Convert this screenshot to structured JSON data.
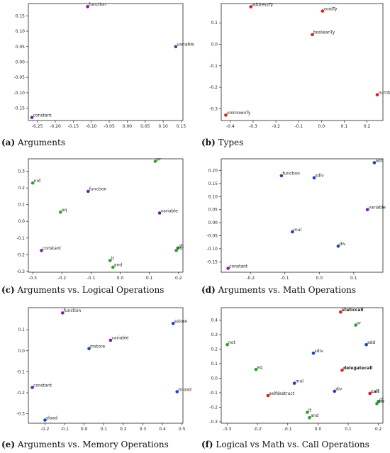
{
  "colors": {
    "purple": "#7a1fa2",
    "red": "#e41a1c",
    "green": "#2ca02c",
    "blue": "#1f3fbf"
  },
  "chart_data": [
    {
      "type": "scatter",
      "caption_letter": "(a)",
      "caption_text": "Arguments",
      "xlim": [
        -0.275,
        0.155
      ],
      "ylim": [
        -0.19,
        0.19
      ],
      "xticks": [
        -0.25,
        -0.2,
        -0.15,
        -0.1,
        -0.05,
        0.0,
        0.05,
        0.1,
        0.15
      ],
      "xtick_labels": [
        "-0.25",
        "-0.20",
        "-0.15",
        "-0.10",
        "-0.05",
        "0.00",
        "0.05",
        "0.10",
        "0.15"
      ],
      "yticks": [
        -0.15,
        -0.1,
        -0.05,
        0.0,
        0.05,
        0.1,
        0.15
      ],
      "ytick_labels": [
        "-0.15",
        "-0.10",
        "-0.05",
        "0.00",
        "0.05",
        "0.10",
        "0.15"
      ],
      "points": [
        {
          "label": "function",
          "x": -0.11,
          "y": 0.18,
          "color": "purple"
        },
        {
          "label": "variable",
          "x": 0.135,
          "y": 0.05,
          "color": "purple"
        },
        {
          "label": "constant",
          "x": -0.265,
          "y": -0.18,
          "color": "purple"
        }
      ]
    },
    {
      "type": "scatter",
      "caption_letter": "(b)",
      "caption_text": "Types",
      "xlim": [
        -0.44,
        0.27
      ],
      "ylim": [
        -0.355,
        0.19
      ],
      "xticks": [
        -0.4,
        -0.3,
        -0.2,
        -0.1,
        0.0,
        0.1,
        0.2
      ],
      "xtick_labels": [
        "-0.4",
        "-0.3",
        "-0.2",
        "-0.1",
        "0.0",
        "0.1",
        "0.2"
      ],
      "yticks": [
        -0.3,
        -0.2,
        -0.1,
        0.0,
        0.1
      ],
      "ytick_labels": [
        "-0.3",
        "-0.2",
        "-0.1",
        "0.0",
        "0.1"
      ],
      "points": [
        {
          "label": "addressTy",
          "x": -0.31,
          "y": 0.175,
          "color": "red"
        },
        {
          "label": "voidTy",
          "x": 0.005,
          "y": 0.155,
          "color": "red"
        },
        {
          "label": "booleanTy",
          "x": -0.04,
          "y": 0.045,
          "color": "red"
        },
        {
          "label": "numberTy",
          "x": 0.245,
          "y": -0.235,
          "color": "red"
        },
        {
          "label": "unknownTy",
          "x": -0.42,
          "y": -0.33,
          "color": "red"
        }
      ]
    },
    {
      "type": "scatter",
      "caption_letter": "(c)",
      "caption_text": "Arguments vs. Logical Operations",
      "xlim": [
        -0.315,
        0.215
      ],
      "ylim": [
        -0.305,
        0.375
      ],
      "xticks": [
        -0.3,
        -0.2,
        -0.1,
        0.0,
        0.1,
        0.2
      ],
      "xtick_labels": [
        "-0.3",
        "-0.2",
        "-0.1",
        "0.0",
        "0.1",
        "0.2"
      ],
      "yticks": [
        -0.3,
        -0.2,
        -0.1,
        0.0,
        0.1,
        0.2,
        0.3
      ],
      "ytick_labels": [
        "-0.3",
        "-0.2",
        "-0.1",
        "0.0",
        "0.1",
        "0.2",
        "0.3"
      ],
      "points": [
        {
          "label": "or",
          "x": 0.12,
          "y": 0.36,
          "color": "green"
        },
        {
          "label": "not",
          "x": -0.3,
          "y": 0.23,
          "color": "green"
        },
        {
          "label": "function",
          "x": -0.11,
          "y": 0.18,
          "color": "purple"
        },
        {
          "label": "eq",
          "x": -0.205,
          "y": 0.055,
          "color": "green"
        },
        {
          "label": "variable",
          "x": 0.135,
          "y": 0.05,
          "color": "purple"
        },
        {
          "label": "constant",
          "x": -0.27,
          "y": -0.175,
          "color": "purple"
        },
        {
          "label": "gt",
          "x": 0.197,
          "y": -0.16,
          "color": "green"
        },
        {
          "label": "xor",
          "x": 0.192,
          "y": -0.175,
          "color": "green"
        },
        {
          "label": "lt",
          "x": -0.035,
          "y": -0.235,
          "color": "green"
        },
        {
          "label": "and",
          "x": -0.025,
          "y": -0.275,
          "color": "green"
        }
      ]
    },
    {
      "type": "scatter",
      "caption_letter": "(d)",
      "caption_text": "Arguments vs. Math Operations",
      "xlim": [
        -0.285,
        0.185
      ],
      "ylim": [
        -0.19,
        0.245
      ],
      "xticks": [
        -0.2,
        -0.1,
        0.0,
        0.1
      ],
      "xtick_labels": [
        "-0.2",
        "-0.1",
        "0.0",
        "0.1"
      ],
      "yticks": [
        -0.15,
        -0.1,
        -0.05,
        0.0,
        0.05,
        0.1,
        0.15,
        0.2
      ],
      "ytick_labels": [
        "-0.15",
        "-0.10",
        "-0.05",
        "0.00",
        "0.05",
        "0.10",
        "0.15",
        "0.20"
      ],
      "points": [
        {
          "label": "add",
          "x": 0.16,
          "y": 0.23,
          "color": "blue"
        },
        {
          "label": "function",
          "x": -0.11,
          "y": 0.18,
          "color": "purple"
        },
        {
          "label": "sdiv",
          "x": -0.015,
          "y": 0.172,
          "color": "blue"
        },
        {
          "label": "variable",
          "x": 0.14,
          "y": 0.05,
          "color": "purple"
        },
        {
          "label": "mul",
          "x": -0.078,
          "y": -0.035,
          "color": "blue"
        },
        {
          "label": "div",
          "x": 0.055,
          "y": -0.09,
          "color": "blue"
        },
        {
          "label": "constant",
          "x": -0.265,
          "y": -0.175,
          "color": "purple"
        }
      ]
    },
    {
      "type": "scatter",
      "caption_letter": "(e)",
      "caption_text": "Arguments vs. Memory Operations",
      "xlim": [
        -0.285,
        0.505
      ],
      "ylim": [
        -0.345,
        0.205
      ],
      "xticks": [
        -0.2,
        -0.1,
        0.0,
        0.1,
        0.2,
        0.3,
        0.4,
        0.5
      ],
      "xtick_labels": [
        "-0.2",
        "-0.1",
        "0.0",
        "0.1",
        "0.2",
        "0.3",
        "0.4",
        "0.5"
      ],
      "yticks": [
        -0.3,
        -0.2,
        -0.1,
        0.0,
        0.1
      ],
      "ytick_labels": [
        "-0.3",
        "-0.2",
        "-0.1",
        "0.0",
        "0.1"
      ],
      "points": [
        {
          "label": "function",
          "x": -0.11,
          "y": 0.18,
          "color": "purple"
        },
        {
          "label": "sstore",
          "x": 0.455,
          "y": 0.13,
          "color": "blue"
        },
        {
          "label": "variable",
          "x": 0.135,
          "y": 0.05,
          "color": "purple"
        },
        {
          "label": "mstore",
          "x": 0.025,
          "y": 0.01,
          "color": "blue"
        },
        {
          "label": "constant",
          "x": -0.265,
          "y": -0.175,
          "color": "purple"
        },
        {
          "label": "mload",
          "x": 0.475,
          "y": -0.195,
          "color": "blue"
        },
        {
          "label": "sload",
          "x": -0.2,
          "y": -0.33,
          "color": "blue"
        }
      ]
    },
    {
      "type": "scatter",
      "caption_letter": "(f)",
      "caption_text": "Logical vs Math vs. Call Operations",
      "xlim": [
        -0.32,
        0.215
      ],
      "ylim": [
        -0.31,
        0.485
      ],
      "xticks": [
        -0.3,
        -0.2,
        -0.1,
        0.0,
        0.1,
        0.2
      ],
      "xtick_labels": [
        "-0.3",
        "-0.2",
        "-0.1",
        "0.0",
        "0.1",
        "0.2"
      ],
      "yticks": [
        -0.3,
        -0.2,
        -0.1,
        0.0,
        0.1,
        0.2,
        0.3,
        0.4
      ],
      "ytick_labels": [
        "-0.3",
        "-0.2",
        "-0.1",
        "0.0",
        "0.1",
        "0.2",
        "0.3",
        "0.4"
      ],
      "points": [
        {
          "label": "staticcall",
          "x": 0.075,
          "y": 0.455,
          "color": "red",
          "bold": true
        },
        {
          "label": "or",
          "x": 0.125,
          "y": 0.365,
          "color": "green"
        },
        {
          "label": "not",
          "x": -0.3,
          "y": 0.23,
          "color": "green"
        },
        {
          "label": "add",
          "x": 0.16,
          "y": 0.23,
          "color": "blue"
        },
        {
          "label": "sdiv",
          "x": -0.015,
          "y": 0.172,
          "color": "blue"
        },
        {
          "label": "eq",
          "x": -0.205,
          "y": 0.06,
          "color": "green"
        },
        {
          "label": "delegatecall",
          "x": 0.08,
          "y": 0.055,
          "color": "red",
          "bold": true
        },
        {
          "label": "mul",
          "x": -0.078,
          "y": -0.035,
          "color": "blue"
        },
        {
          "label": "div",
          "x": 0.055,
          "y": -0.09,
          "color": "blue"
        },
        {
          "label": "selfdestruct",
          "x": -0.165,
          "y": -0.12,
          "color": "red"
        },
        {
          "label": "call",
          "x": 0.172,
          "y": -0.105,
          "color": "red",
          "bold": true
        },
        {
          "label": "gt",
          "x": 0.2,
          "y": -0.16,
          "color": "green"
        },
        {
          "label": "xor",
          "x": 0.195,
          "y": -0.175,
          "color": "green"
        },
        {
          "label": "lt",
          "x": -0.035,
          "y": -0.235,
          "color": "green"
        },
        {
          "label": "and",
          "x": -0.028,
          "y": -0.272,
          "color": "green"
        }
      ]
    }
  ]
}
